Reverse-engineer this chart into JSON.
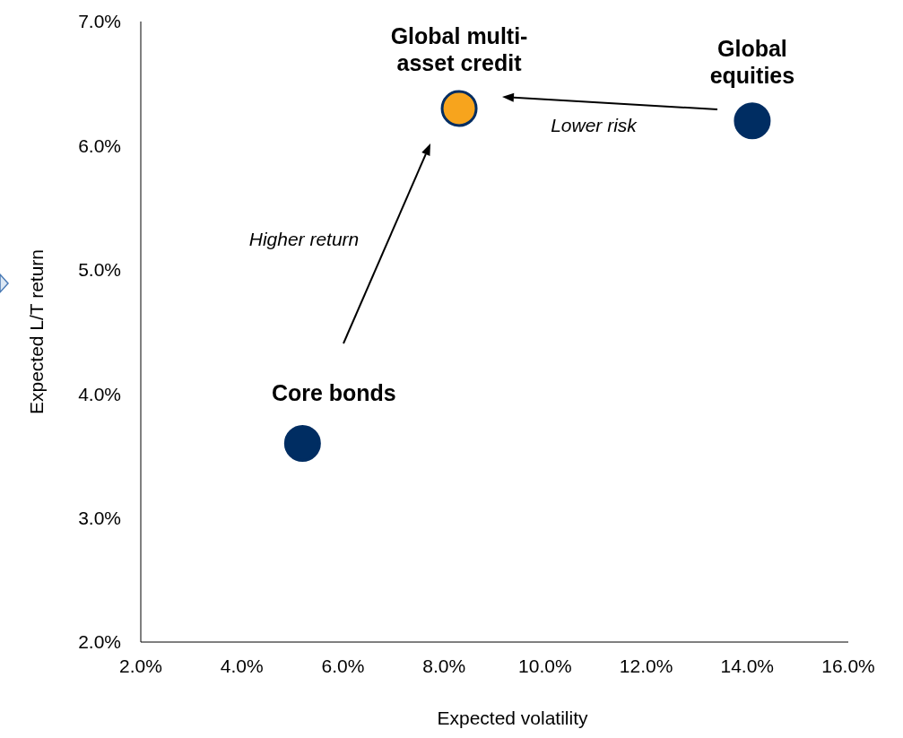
{
  "chart_data": {
    "type": "scatter",
    "xlabel": "Expected volatility",
    "ylabel": "Expected L/T return",
    "x": [
      5.2,
      8.3,
      14.1
    ],
    "values": [
      3.6,
      6.3,
      6.2
    ],
    "colors": [
      "#002d62",
      "#f7a41d",
      "#002d62"
    ],
    "xlim": [
      2,
      16
    ],
    "xticks": [
      {
        "value": 2,
        "label": "2.0%"
      },
      {
        "value": 4,
        "label": "4.0%"
      },
      {
        "value": 6,
        "label": "6.0%"
      },
      {
        "value": 8,
        "label": "8.0%"
      },
      {
        "value": 10,
        "label": "10.0%"
      },
      {
        "value": 12,
        "label": "12.0%"
      },
      {
        "value": 14,
        "label": "14.0%"
      },
      {
        "value": 16,
        "label": "16.0%"
      }
    ],
    "ylim": [
      2,
      7
    ],
    "yticks": [
      {
        "value": 2,
        "label": "2.0%"
      },
      {
        "value": 3,
        "label": "3.0%"
      },
      {
        "value": 4,
        "label": "4.0%"
      },
      {
        "value": 5,
        "label": "5.0%"
      },
      {
        "value": 6,
        "label": "6.0%"
      },
      {
        "value": 7,
        "label": "7.0%"
      }
    ],
    "marker": "circle",
    "grid": false,
    "annotations": [
      {
        "text": "Core bonds",
        "x": 5.2,
        "y": 3.6
      },
      {
        "text": "Global multi-\nasset credit",
        "x": 8.3,
        "y": 6.3
      },
      {
        "text": "Global\nequities",
        "x": 14.1,
        "y": 6.2
      },
      "Lower risk",
      "Higher return"
    ]
  }
}
